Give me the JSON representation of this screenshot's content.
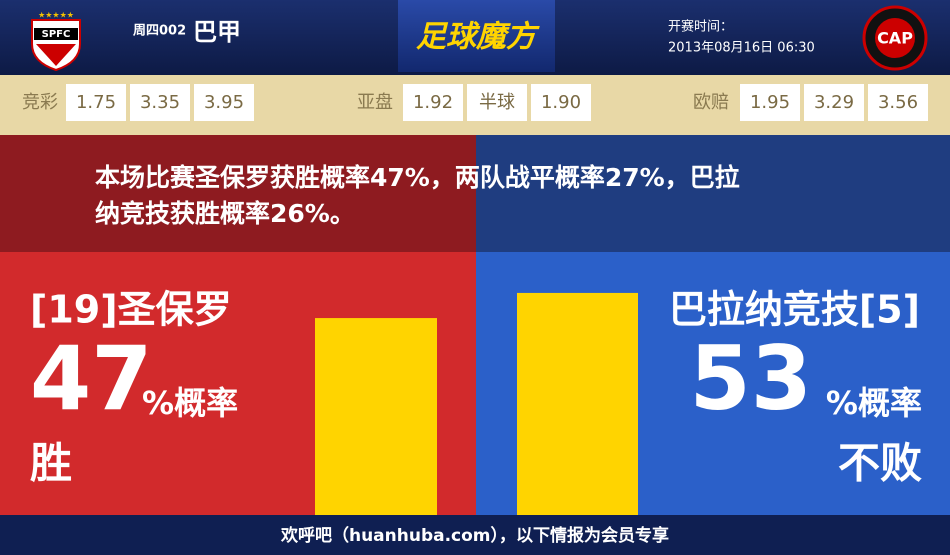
{
  "header": {
    "match_no": "周四002",
    "league": "巴甲",
    "brand": "足球魔方",
    "kickoff_label": "开赛时间：",
    "kickoff": "2013年08月16日 06:30"
  },
  "odds": [
    {
      "label": "竞彩",
      "values": [
        "1.75",
        "3.35",
        "3.95"
      ]
    },
    {
      "label": "亚盘",
      "values": [
        "1.92",
        "半球",
        "1.90"
      ]
    },
    {
      "label": "欧赔",
      "values": [
        "1.95",
        "3.29",
        "3.56"
      ]
    }
  ],
  "summary": [
    "本场比赛圣保罗获胜概率47%，两队战平概率27%，巴拉",
    "纳竞技获胜概率26%。"
  ],
  "home": {
    "name": "[19]圣保罗",
    "percent": 47,
    "unit": "%概率",
    "outcome": "胜"
  },
  "away": {
    "name": "巴拉纳竞技[5]",
    "percent": 53,
    "unit": "%概率",
    "outcome": "不败"
  },
  "footer": "欢呼吧（huanhuba.com），以下情报为会员专享"
}
